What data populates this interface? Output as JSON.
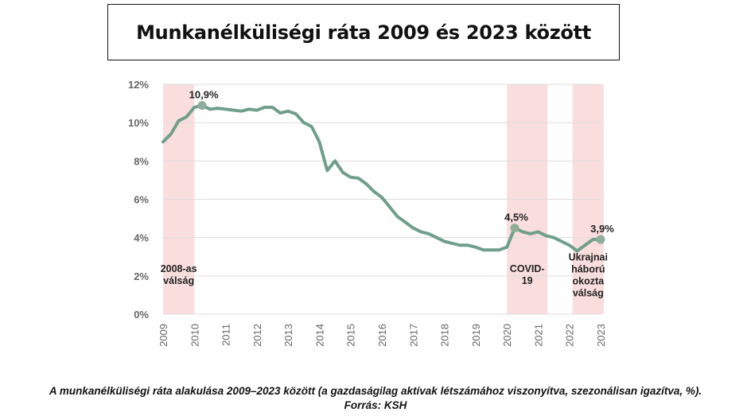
{
  "title": "Munkanélküliségi ráta 2009 és 2023 között",
  "caption": "A munkanélküliségi ráta alakulása 2009–2023 között (a gazdaságilag aktívak létszámához viszonyítva, szezonálisan igazítva, %).",
  "source": "Forrás: KSH",
  "colors": {
    "line": "#6f9f8a",
    "band": "#f9dedd",
    "grid": "#dcdcdc",
    "marker": "#8fae98"
  },
  "chart_data": {
    "type": "line",
    "title": "",
    "xlabel": "",
    "ylabel": "",
    "xlim": [
      2009,
      2023
    ],
    "ylim": [
      0,
      12
    ],
    "grid": true,
    "yticks": [
      {
        "value": 0,
        "label": "0%"
      },
      {
        "value": 2,
        "label": "2%"
      },
      {
        "value": 4,
        "label": "4%"
      },
      {
        "value": 6,
        "label": "6%"
      },
      {
        "value": 8,
        "label": "8%"
      },
      {
        "value": 10,
        "label": "10%"
      },
      {
        "value": 12,
        "label": "12%"
      }
    ],
    "xticks": [
      {
        "value": 2009,
        "label": "2009"
      },
      {
        "value": 2010,
        "label": "2010"
      },
      {
        "value": 2011,
        "label": "2011"
      },
      {
        "value": 2012,
        "label": "2012"
      },
      {
        "value": 2013,
        "label": "2013"
      },
      {
        "value": 2014,
        "label": "2014"
      },
      {
        "value": 2015,
        "label": "2015"
      },
      {
        "value": 2016,
        "label": "2016"
      },
      {
        "value": 2017,
        "label": "2017"
      },
      {
        "value": 2018,
        "label": "2018"
      },
      {
        "value": 2019,
        "label": "2019"
      },
      {
        "value": 2020,
        "label": "2020"
      },
      {
        "value": 2021,
        "label": "2021"
      },
      {
        "value": 2022,
        "label": "2022"
      },
      {
        "value": 2023,
        "label": "2023"
      }
    ],
    "shaded_periods": [
      {
        "start": 2009,
        "end": 2010,
        "label_lines": [
          "2008-as",
          "válság"
        ],
        "label_y": 2.2
      },
      {
        "start": 2020,
        "end": 2021.3,
        "label_lines": [
          "COVID-",
          "19"
        ],
        "label_y": 2.2
      },
      {
        "start": 2022.1,
        "end": 2023.1,
        "label_lines": [
          "Ukrajnai",
          "háború",
          "okozta",
          "válság"
        ],
        "label_y": 2.8
      }
    ],
    "series": [
      {
        "points": [
          [
            2009.0,
            9.0
          ],
          [
            2009.25,
            9.4
          ],
          [
            2009.5,
            10.1
          ],
          [
            2009.75,
            10.3
          ],
          [
            2010.0,
            10.8
          ],
          [
            2010.25,
            10.9
          ],
          [
            2010.5,
            10.7
          ],
          [
            2010.75,
            10.75
          ],
          [
            2011.0,
            10.7
          ],
          [
            2011.25,
            10.65
          ],
          [
            2011.5,
            10.6
          ],
          [
            2011.75,
            10.7
          ],
          [
            2012.0,
            10.65
          ],
          [
            2012.25,
            10.8
          ],
          [
            2012.5,
            10.8
          ],
          [
            2012.75,
            10.5
          ],
          [
            2013.0,
            10.6
          ],
          [
            2013.25,
            10.45
          ],
          [
            2013.5,
            10.0
          ],
          [
            2013.75,
            9.8
          ],
          [
            2014.0,
            9.0
          ],
          [
            2014.25,
            7.5
          ],
          [
            2014.5,
            8.0
          ],
          [
            2014.75,
            7.4
          ],
          [
            2015.0,
            7.15
          ],
          [
            2015.25,
            7.1
          ],
          [
            2015.5,
            6.8
          ],
          [
            2015.75,
            6.4
          ],
          [
            2016.0,
            6.1
          ],
          [
            2016.25,
            5.6
          ],
          [
            2016.5,
            5.1
          ],
          [
            2016.75,
            4.8
          ],
          [
            2017.0,
            4.5
          ],
          [
            2017.25,
            4.3
          ],
          [
            2017.5,
            4.2
          ],
          [
            2017.75,
            4.0
          ],
          [
            2018.0,
            3.8
          ],
          [
            2018.25,
            3.7
          ],
          [
            2018.5,
            3.6
          ],
          [
            2018.75,
            3.6
          ],
          [
            2019.0,
            3.5
          ],
          [
            2019.25,
            3.35
          ],
          [
            2019.5,
            3.35
          ],
          [
            2019.75,
            3.35
          ],
          [
            2020.0,
            3.5
          ],
          [
            2020.25,
            4.5
          ],
          [
            2020.5,
            4.3
          ],
          [
            2020.75,
            4.2
          ],
          [
            2021.0,
            4.3
          ],
          [
            2021.25,
            4.1
          ],
          [
            2021.5,
            4.0
          ],
          [
            2021.75,
            3.8
          ],
          [
            2022.0,
            3.6
          ],
          [
            2022.25,
            3.3
          ],
          [
            2022.5,
            3.6
          ],
          [
            2022.75,
            3.9
          ],
          [
            2023.0,
            3.9
          ]
        ]
      }
    ],
    "annotations": [
      {
        "x": 2010.25,
        "y": 10.9,
        "label": "10,9%"
      },
      {
        "x": 2020.25,
        "y": 4.5,
        "label": "4,5%"
      },
      {
        "x": 2023.0,
        "y": 3.9,
        "label": "3,9%"
      }
    ]
  }
}
